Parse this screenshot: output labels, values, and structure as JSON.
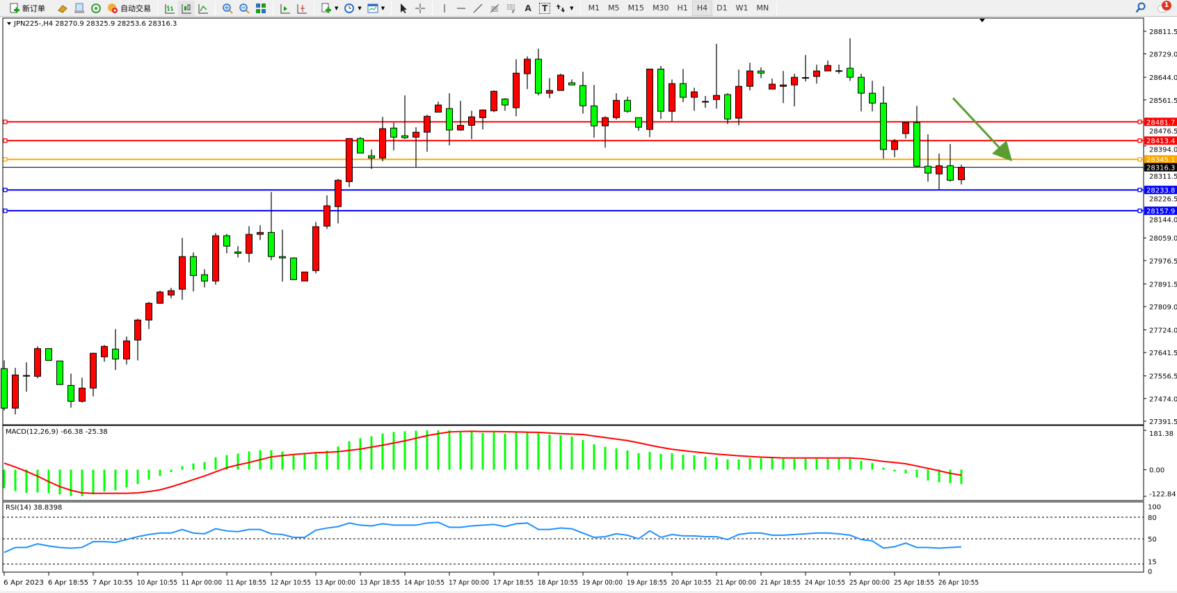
{
  "toolbar": {
    "new_order_label": "新订单",
    "auto_trading_label": "自动交易",
    "icons": [
      "new-order-icon",
      "gold-bars-icon",
      "market-watch-icon",
      "signals-icon",
      "auto-trading-icon",
      "bar-chart-icon",
      "candlestick-chart-icon",
      "line-chart-icon",
      "zoom-in-icon",
      "zoom-out-icon",
      "tile-windows-icon",
      "chart-shift-icon",
      "autoscroll-icon",
      "indicators-icon",
      "periods-icon",
      "templates-icon",
      "cursor-icon",
      "crosshair-icon",
      "vertical-line-icon",
      "horizontal-line-icon",
      "trendline-icon",
      "fibonacci-icon",
      "channel-icon",
      "text-icon",
      "text-label-icon",
      "arrows-icon"
    ],
    "text_tool": "A",
    "label_tool": "T",
    "timeframes": [
      "M1",
      "M5",
      "M15",
      "M30",
      "H1",
      "H4",
      "D1",
      "W1",
      "MN"
    ],
    "selected_timeframe": "H4",
    "notification_count": "1"
  },
  "chart": {
    "header": "JPN225-,H4  28270.9 28325.9 28253.6 28316.3",
    "colors": {
      "bull": "#ff0000",
      "bear": "#00ff00",
      "outline": "#000000",
      "macd_hist": "#00ff00",
      "macd_signal": "#ff0000",
      "rsi": "#1e90ff",
      "arrow": "#5a9e32"
    },
    "price_ticks": [
      "28811.5",
      "28729.0",
      "28644.0",
      "28561.5",
      "28476.5",
      "28394.0",
      "28311.5",
      "28226.5",
      "28144.0",
      "28059.0",
      "27976.5",
      "27891.5",
      "27809.0",
      "27724.0",
      "27641.5",
      "27556.5",
      "27474.0",
      "27391.5"
    ],
    "levels": [
      {
        "price": 28481.7,
        "label": "28481.7",
        "color": "#ff0000"
      },
      {
        "price": 28413.4,
        "label": "28413.4",
        "color": "#ff0000"
      },
      {
        "price": 28345.1,
        "label": "28345.1",
        "color": "#ffa500"
      },
      {
        "price": 28233.8,
        "label": "28233.8",
        "color": "#0000ff"
      },
      {
        "price": 28157.9,
        "label": "28157.9",
        "color": "#0000ff"
      }
    ],
    "bid": {
      "price": 28316.3,
      "label": "28316.3"
    },
    "time_labels": [
      "6 Apr 2023",
      "6 Apr 18:55",
      "7 Apr 10:55",
      "10 Apr 10:55",
      "11 Apr 00:00",
      "11 Apr 18:55",
      "12 Apr 10:55",
      "13 Apr 00:00",
      "13 Apr 18:55",
      "14 Apr 10:55",
      "17 Apr 00:00",
      "17 Apr 18:55",
      "18 Apr 10:55",
      "19 Apr 00:00",
      "19 Apr 18:55",
      "20 Apr 10:55",
      "21 Apr 00:00",
      "21 Apr 18:55",
      "24 Apr 10:55",
      "25 Apr 00:00",
      "25 Apr 18:55",
      "26 Apr 10:55"
    ],
    "time_label_every": 4,
    "macd": {
      "header": "MACD(12,26,9) -66.38 -25.38",
      "ticks": [
        "181.38",
        "0.00",
        "-122.84"
      ],
      "range": [
        -122.84,
        181.38
      ]
    },
    "rsi": {
      "header": "RSI(14) 38.8398",
      "ticks": [
        "100",
        "80",
        "50",
        "15",
        "0"
      ],
      "levels": [
        80,
        50,
        15
      ]
    }
  },
  "chart_data": [
    {
      "type": "candlestick",
      "ylim": [
        27391.5,
        28811.5
      ],
      "ohlc": [
        [
          27583,
          27613,
          27431,
          27439
        ],
        [
          27439,
          27586,
          27416,
          27560
        ],
        [
          27556,
          27606,
          27499,
          27558
        ],
        [
          27555,
          27664,
          27548,
          27656
        ],
        [
          27656,
          27656,
          27613,
          27613
        ],
        [
          27611,
          27611,
          27525,
          27525
        ],
        [
          27522,
          27565,
          27441,
          27464
        ],
        [
          27464,
          27550,
          27459,
          27512
        ],
        [
          27512,
          27641,
          27482,
          27639
        ],
        [
          27626,
          27669,
          27608,
          27664
        ],
        [
          27654,
          27727,
          27578,
          27618
        ],
        [
          27618,
          27700,
          27598,
          27684
        ],
        [
          27687,
          27765,
          27613,
          27760
        ],
        [
          27760,
          27826,
          27727,
          27821
        ],
        [
          27821,
          27867,
          27819,
          27862
        ],
        [
          27851,
          27877,
          27839,
          27867
        ],
        [
          27872,
          28059,
          27834,
          27991
        ],
        [
          27991,
          28006,
          27864,
          27922
        ],
        [
          27925,
          27945,
          27879,
          27902
        ],
        [
          27902,
          28077,
          27889,
          28067
        ],
        [
          28067,
          28074,
          28003,
          28029
        ],
        [
          28008,
          28029,
          27988,
          28003
        ],
        [
          28003,
          28102,
          27970,
          28072
        ],
        [
          28072,
          28105,
          28051,
          28079
        ],
        [
          28079,
          28226,
          27978,
          27991
        ],
        [
          27991,
          28089,
          27900,
          27986
        ],
        [
          27986,
          27988,
          27907,
          27907
        ],
        [
          27902,
          27935,
          27902,
          27935
        ],
        [
          27940,
          28117,
          27930,
          28100
        ],
        [
          28102,
          28214,
          28092,
          28176
        ],
        [
          28173,
          28274,
          28112,
          28269
        ],
        [
          28264,
          28421,
          28244,
          28421
        ],
        [
          28421,
          28426,
          28368,
          28368
        ],
        [
          28358,
          28381,
          28310,
          28350
        ],
        [
          28350,
          28500,
          28338,
          28457
        ],
        [
          28459,
          28479,
          28378,
          28426
        ],
        [
          28431,
          28578,
          28419,
          28424
        ],
        [
          28426,
          28462,
          28315,
          28444
        ],
        [
          28444,
          28507,
          28373,
          28502
        ],
        [
          28517,
          28555,
          28517,
          28543
        ],
        [
          28530,
          28586,
          28396,
          28452
        ],
        [
          28452,
          28558,
          28449,
          28469
        ],
        [
          28469,
          28522,
          28419,
          28500
        ],
        [
          28497,
          28527,
          28454,
          28525
        ],
        [
          28522,
          28596,
          28517,
          28593
        ],
        [
          28565,
          28568,
          28522,
          28543
        ],
        [
          28533,
          28710,
          28502,
          28659
        ],
        [
          28657,
          28720,
          28601,
          28710
        ],
        [
          28710,
          28748,
          28578,
          28586
        ],
        [
          28586,
          28641,
          28568,
          28596
        ],
        [
          28596,
          28657,
          28596,
          28652
        ],
        [
          28624,
          28636,
          28616,
          28616
        ],
        [
          28614,
          28664,
          28512,
          28540
        ],
        [
          28540,
          28616,
          28424,
          28467
        ],
        [
          28467,
          28502,
          28388,
          28497
        ],
        [
          28497,
          28586,
          28490,
          28560
        ],
        [
          28560,
          28573,
          28515,
          28520
        ],
        [
          28497,
          28497,
          28449,
          28462
        ],
        [
          28454,
          28674,
          28426,
          28674
        ],
        [
          28674,
          28685,
          28492,
          28520
        ],
        [
          28520,
          28636,
          28484,
          28621
        ],
        [
          28621,
          28674,
          28553,
          28571
        ],
        [
          28571,
          28606,
          28522,
          28591
        ],
        [
          28556,
          28576,
          28533,
          28555
        ],
        [
          28563,
          28766,
          28530,
          28578
        ],
        [
          28581,
          28586,
          28474,
          28492
        ],
        [
          28495,
          28672,
          28469,
          28611
        ],
        [
          28611,
          28697,
          28596,
          28667
        ],
        [
          28667,
          28680,
          28641,
          28659
        ],
        [
          28601,
          28639,
          28601,
          28619
        ],
        [
          28611,
          28667,
          28550,
          28616
        ],
        [
          28616,
          28657,
          28538,
          28644
        ],
        [
          28643,
          28725,
          28629,
          28641
        ],
        [
          28647,
          28690,
          28621,
          28667
        ],
        [
          28667,
          28705,
          28667,
          28687
        ],
        [
          28668,
          28690,
          28657,
          28667
        ],
        [
          28677,
          28786,
          28631,
          28644
        ],
        [
          28644,
          28657,
          28520,
          28586
        ],
        [
          28586,
          28631,
          28520,
          28550
        ],
        [
          28550,
          28611,
          28348,
          28381
        ],
        [
          28381,
          28419,
          28353,
          28411
        ],
        [
          28439,
          28479,
          28421,
          28479
        ],
        [
          28479,
          28540,
          28317,
          28320
        ],
        [
          28320,
          28436,
          28264,
          28295
        ],
        [
          28292,
          28366,
          28236,
          28322
        ],
        [
          28322,
          28401,
          28264,
          28269
        ],
        [
          28270.9,
          28325.9,
          28253.6,
          28316.3
        ]
      ]
    },
    {
      "type": "bar+line",
      "ylim": [
        -122.84,
        181.38
      ],
      "histogram": [
        -85,
        -98,
        -107,
        -105,
        -108,
        -114,
        -122,
        -122,
        -114,
        -101,
        -95,
        -82,
        -66,
        -46,
        -29,
        -11,
        16,
        29,
        35,
        57,
        67,
        74,
        84,
        90,
        90,
        83,
        67,
        74,
        77,
        88,
        107,
        131,
        145,
        154,
        167,
        174,
        177,
        180,
        181,
        181,
        181,
        173,
        173,
        169,
        172,
        166,
        172,
        174,
        169,
        162,
        159,
        153,
        137,
        117,
        105,
        98,
        89,
        76,
        82,
        73,
        76,
        69,
        66,
        60,
        57,
        47,
        47,
        53,
        53,
        53,
        50,
        50,
        50,
        50,
        50,
        50,
        50,
        41,
        31,
        9,
        -8,
        -17,
        -36,
        -50,
        -58,
        -62,
        -66.38
      ],
      "signal": [
        30,
        12,
        -8,
        -30,
        -55,
        -78,
        -95,
        -107,
        -109,
        -109,
        -109,
        -109,
        -107,
        -101,
        -93,
        -79,
        -63,
        -46,
        -29,
        -10,
        9,
        22,
        33,
        46,
        59,
        65,
        70,
        74,
        78,
        80,
        83,
        89,
        95,
        104,
        113,
        123,
        133,
        145,
        157,
        166,
        174,
        176,
        177,
        176,
        176,
        175,
        174,
        173,
        172,
        169,
        166,
        164,
        162,
        155,
        148,
        141,
        134,
        124,
        113,
        103,
        94,
        88,
        82,
        77,
        72,
        68,
        64,
        61,
        58,
        56,
        54,
        54,
        54,
        54,
        54,
        54,
        54,
        51,
        45,
        38,
        33,
        27,
        17,
        6,
        -5,
        -17,
        -25.38
      ]
    },
    {
      "type": "line",
      "ylim": [
        0,
        100
      ],
      "values": [
        31,
        38,
        38,
        43,
        40,
        38,
        37,
        38,
        46,
        46,
        45,
        49,
        53,
        56,
        58,
        58,
        63,
        58,
        57,
        64,
        61,
        60,
        63,
        63,
        57,
        56,
        52,
        52,
        62,
        65,
        67,
        72,
        69,
        68,
        71,
        69,
        69,
        69,
        72,
        73,
        66,
        66,
        68,
        69,
        70,
        67,
        71,
        72,
        63,
        63,
        65,
        64,
        58,
        52,
        53,
        57,
        55,
        50,
        61,
        52,
        56,
        54,
        54,
        53,
        53,
        49,
        56,
        58,
        58,
        55,
        55,
        56,
        57,
        58,
        58,
        57,
        55,
        49,
        47,
        37,
        39,
        44,
        38,
        38,
        37,
        38,
        38.84
      ]
    }
  ]
}
